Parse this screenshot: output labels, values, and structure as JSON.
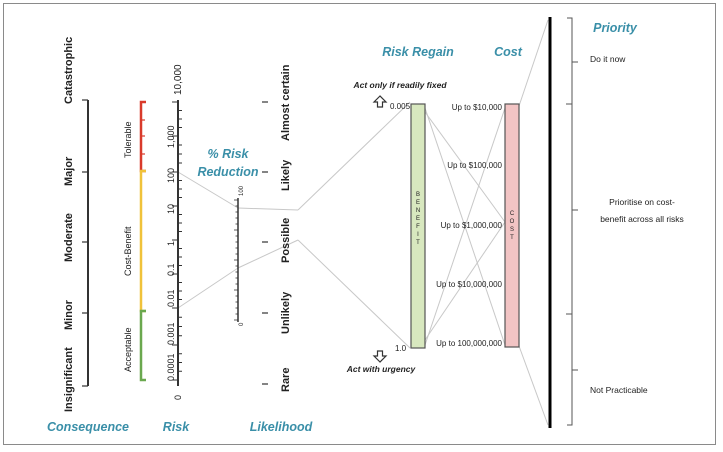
{
  "headers": {
    "consequence": "Consequence",
    "risk": "Risk",
    "likelihood": "Likelihood",
    "risk_reduction": "% Risk",
    "risk_reduction_2": "Reduction",
    "risk_regain": "Risk Regain",
    "cost": "Cost",
    "priority": "Priority"
  },
  "consequence_levels": [
    "Catastrophic",
    "Major",
    "Moderate",
    "Minor",
    "Insignificant"
  ],
  "risk_scale": [
    "10,000",
    "1,000",
    "100",
    "10",
    "1",
    "0.1",
    "0.01",
    "0.001",
    "0.0001",
    "0"
  ],
  "risk_bands": {
    "tolerable": "Tolerable",
    "cost_benefit": "Cost-Benefit",
    "acceptable": "Acceptable"
  },
  "likelihood_levels": [
    "Almost certain",
    "Likely",
    "Possible",
    "Unlikely",
    "Rare"
  ],
  "reduction_scale": {
    "top": "100",
    "bottom": "0"
  },
  "benefit": {
    "label": "BENEFIT",
    "top_value": "0.005",
    "bottom_value": "1.0",
    "top_note": "Act only if readily fixed",
    "bottom_note": "Act with urgency"
  },
  "cost_axis": {
    "label": "COST",
    "levels": [
      "Up to $10,000",
      "Up to $100,000",
      "Up to $1,000,000",
      "Up to $10,000,000",
      "Up to 100,000,000"
    ]
  },
  "priority_levels": {
    "do_now": "Do it now",
    "cost_benefit_1": "Prioritise on cost-",
    "cost_benefit_2": "benefit across all risks",
    "not_practicable": "Not Practicable"
  },
  "colors": {
    "header": "#3a8fa8",
    "tolerable": "#d93a2b",
    "cost_benefit": "#f0c23a",
    "acceptable": "#6aa84f",
    "benefit_fill": "#d8e8bf",
    "cost_fill": "#f2c4c4"
  }
}
